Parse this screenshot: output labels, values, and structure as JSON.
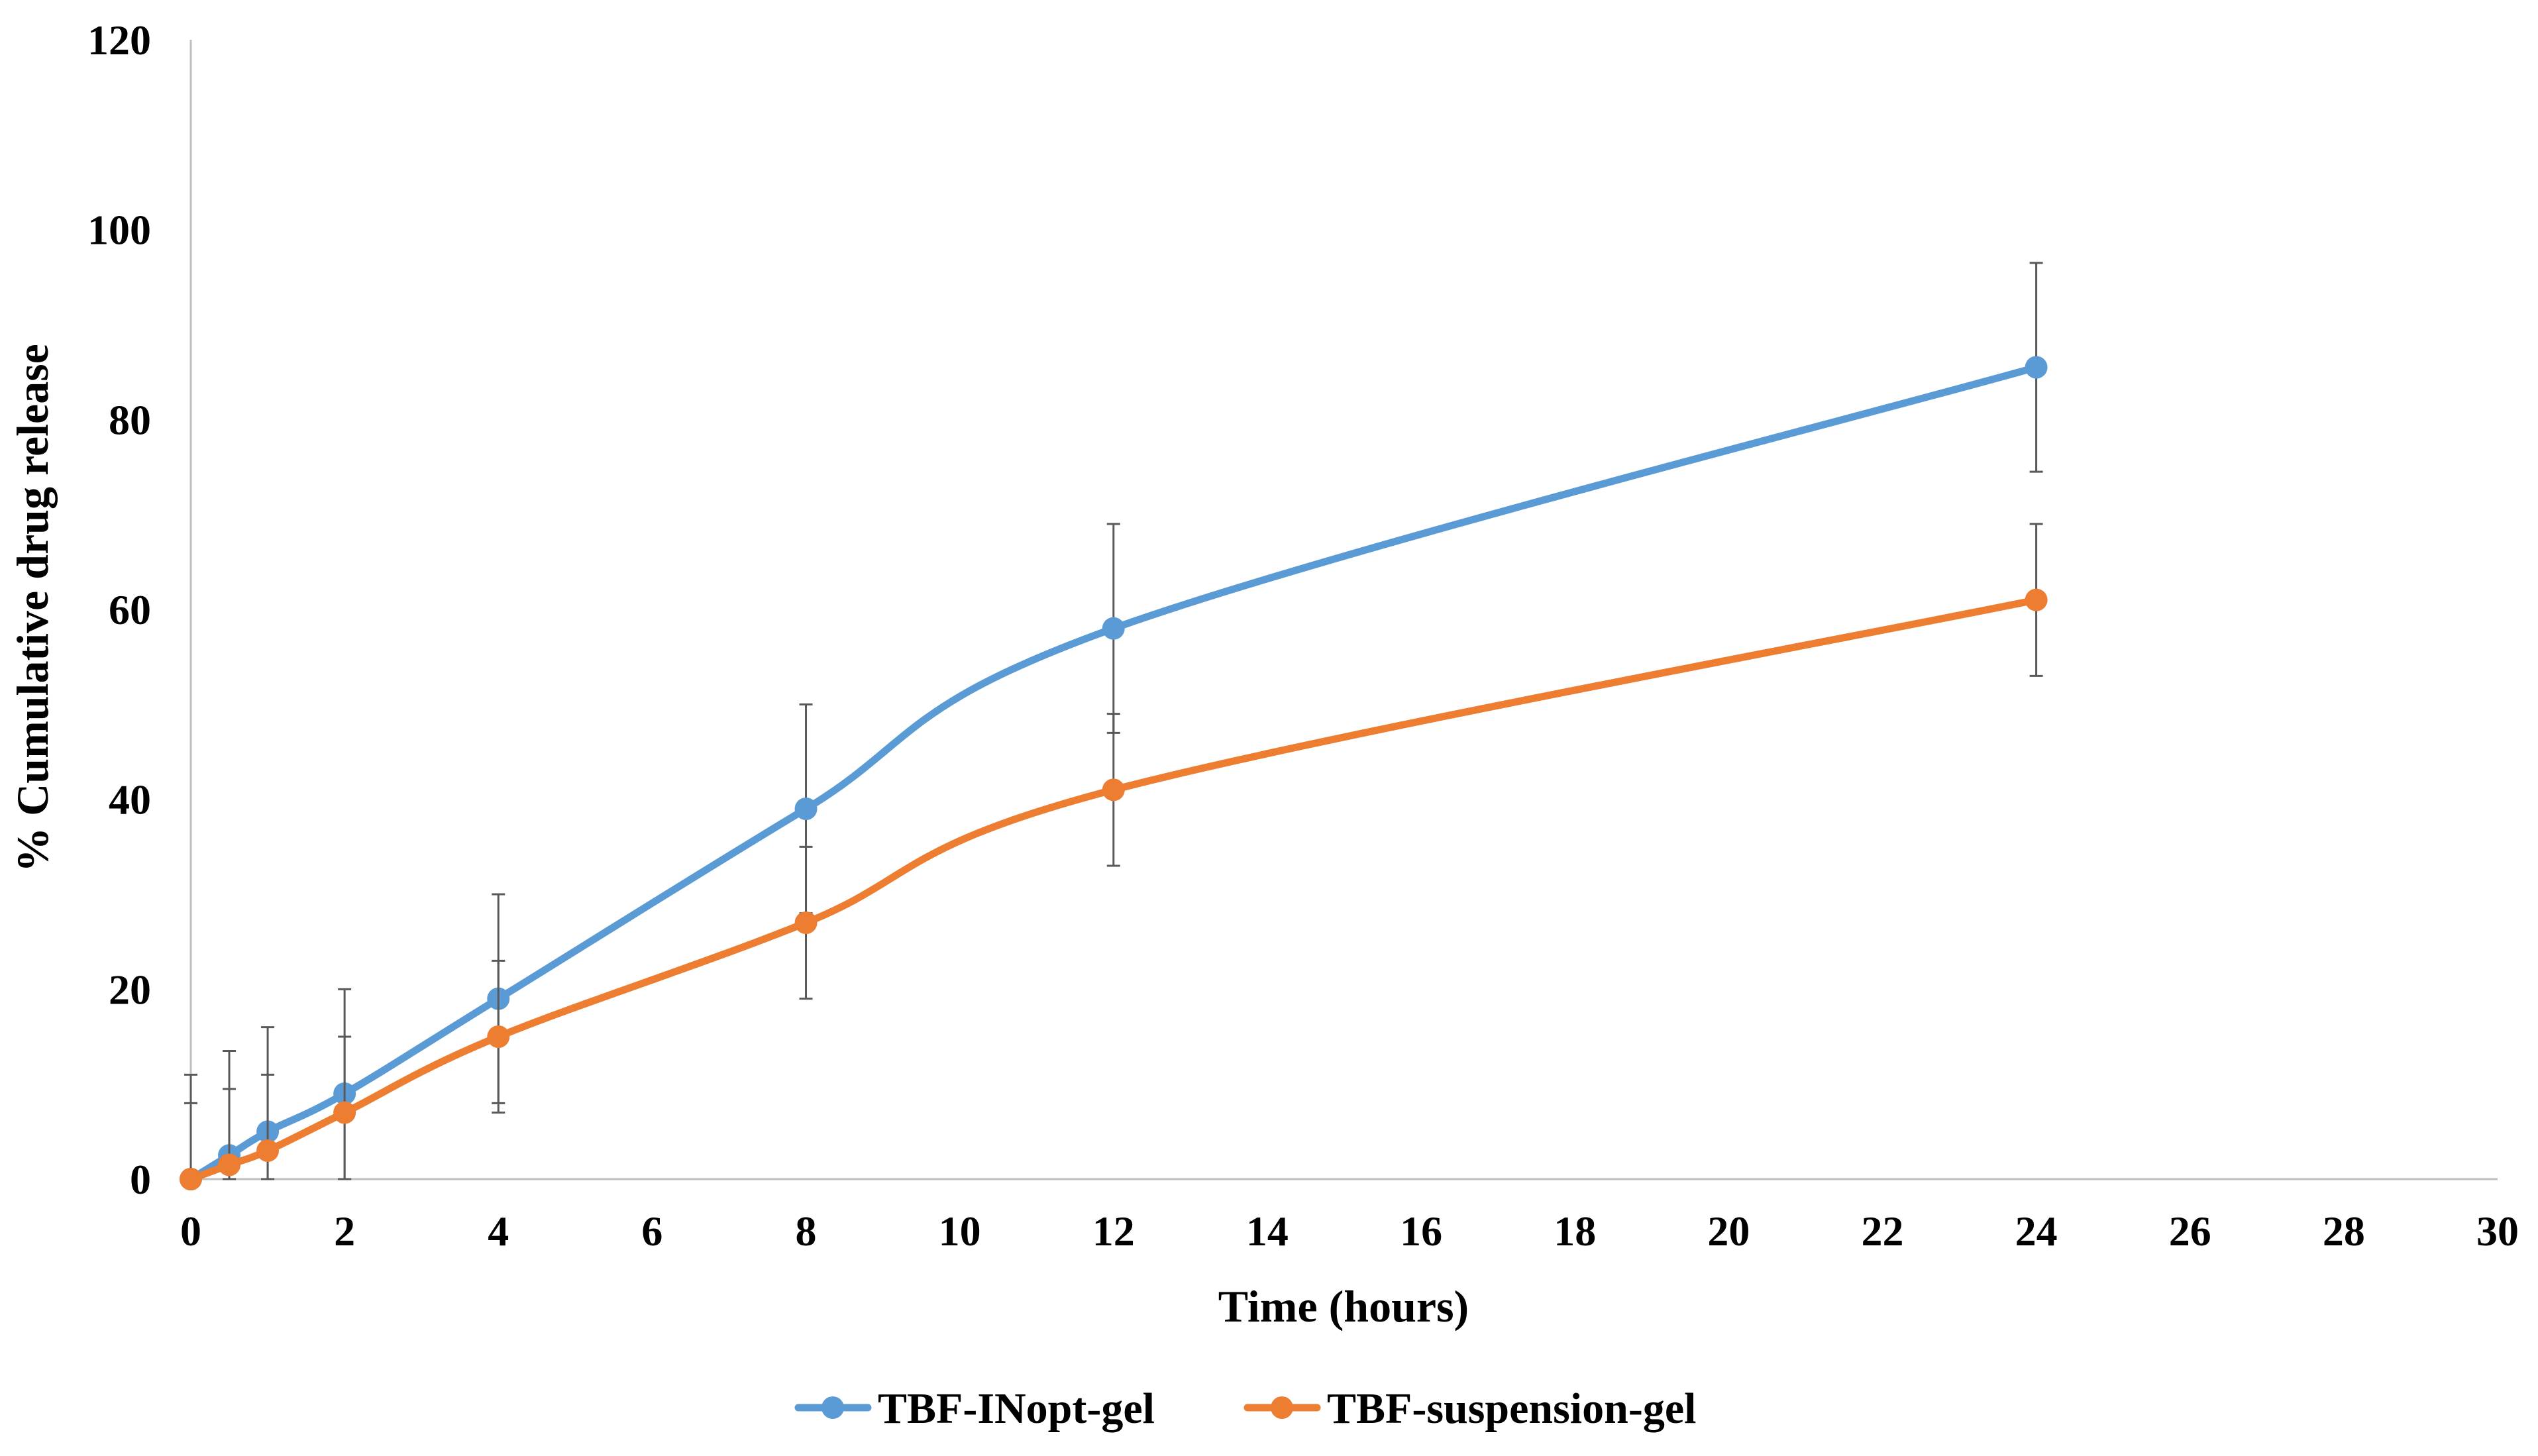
{
  "chart_data": {
    "type": "line",
    "title": "",
    "xlabel": "Time (hours)",
    "ylabel": "% Cumulative drug release",
    "xlim": [
      0,
      30
    ],
    "ylim": [
      0,
      120
    ],
    "xticks": [
      0,
      2,
      4,
      6,
      8,
      10,
      12,
      14,
      16,
      18,
      20,
      22,
      24,
      26,
      28,
      30
    ],
    "yticks": [
      0,
      20,
      40,
      60,
      80,
      100,
      120
    ],
    "grid": false,
    "legend_position": "bottom",
    "series": [
      {
        "name": "TBF-INopt-gel",
        "color": "#5B9BD5",
        "x": [
          0,
          0.5,
          1,
          2,
          4,
          8,
          12,
          24
        ],
        "y": [
          0,
          2.5,
          5,
          9,
          19,
          39,
          58,
          85.5
        ],
        "error": [
          11,
          11,
          11,
          11,
          11,
          11,
          11,
          11
        ]
      },
      {
        "name": "TBF-suspension-gel",
        "color": "#ED7D31",
        "x": [
          0,
          0.5,
          1,
          2,
          4,
          8,
          12,
          24
        ],
        "y": [
          0,
          1.5,
          3,
          7,
          15,
          27,
          41,
          61
        ],
        "error": [
          8,
          8,
          8,
          8,
          8,
          8,
          8,
          8
        ]
      }
    ]
  }
}
